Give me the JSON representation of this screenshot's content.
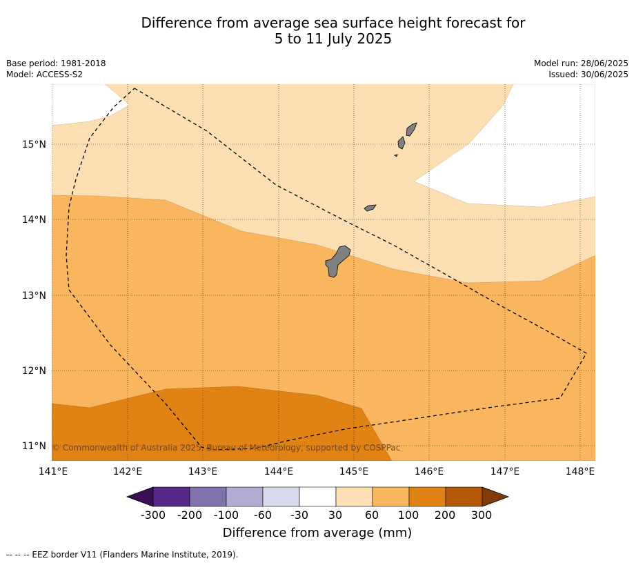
{
  "header": {
    "title_line1": "Difference from average sea surface height forecast for",
    "title_line2": "5 to 11 July 2025",
    "base_period": "Base period: 1981-2018",
    "model": "Model: ACCESS-S2",
    "model_run": "Model run: 28/06/2025",
    "issued": "Issued: 30/06/2025"
  },
  "map": {
    "lon_labels": [
      "141°E",
      "142°E",
      "143°E",
      "144°E",
      "145°E",
      "146°E",
      "147°E",
      "148°E"
    ],
    "lat_labels": [
      "15°N",
      "14°N",
      "13°N",
      "12°N",
      "11°N"
    ],
    "copyright": "© Commonwealth of Australia 2025, Bureau of Meteorology, supported by COSPPac",
    "land_color": "#808080"
  },
  "colorbar": {
    "tick_labels": [
      "-300",
      "-200",
      "-100",
      "-60",
      "-30",
      "30",
      "60",
      "100",
      "200",
      "300"
    ],
    "colors": [
      "#3b0f54",
      "#542788",
      "#8073ac",
      "#b2abd2",
      "#d8daeb",
      "#ffffff",
      "#fee0b6",
      "#f9b65f",
      "#e08214",
      "#b35806",
      "#7f3b08"
    ],
    "title": "Difference from average (mm)"
  },
  "footnote": "--  --  -- EEZ border V11 (Flanders Marine Institute, 2019)."
}
